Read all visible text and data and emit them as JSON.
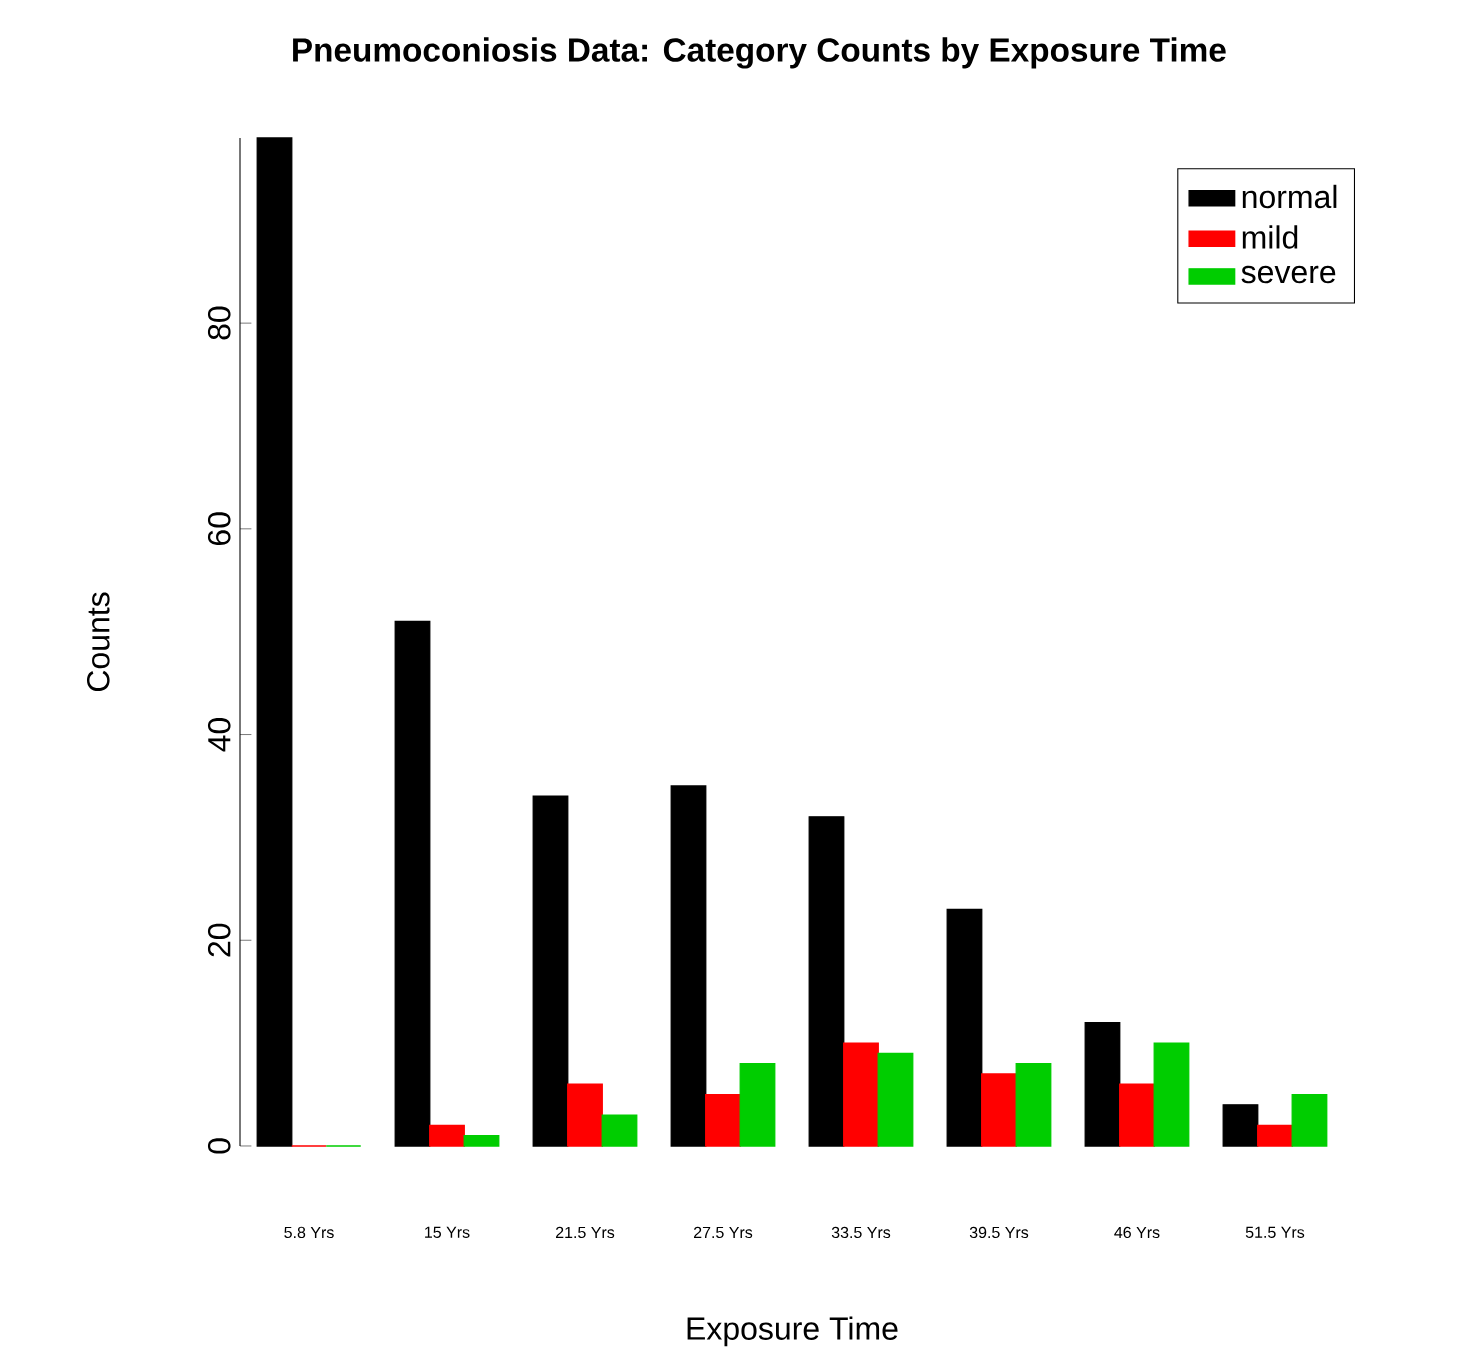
{
  "chart_data": {
    "type": "bar",
    "title": "Pneumoconiosis Data: Category Counts by Exposure Time",
    "xlabel": "Exposure Time",
    "ylabel": "Counts",
    "categories": [
      "5.8 Yrs",
      "15 Yrs",
      "21.5 Yrs",
      "27.5 Yrs",
      "33.5 Yrs",
      "39.5 Yrs",
      "46 Yrs",
      "51.5 Yrs"
    ],
    "series": [
      {
        "name": "normal",
        "color": "#000000",
        "values": [
          98,
          51,
          34,
          35,
          32,
          23,
          12,
          4
        ]
      },
      {
        "name": "mild",
        "color": "#ff0000",
        "values": [
          0,
          2,
          6,
          5,
          10,
          7,
          6,
          2
        ]
      },
      {
        "name": "severe",
        "color": "#00cd00",
        "values": [
          0,
          1,
          3,
          8,
          9,
          8,
          10,
          5
        ]
      }
    ],
    "ylim": [
      0,
      98
    ],
    "yticks": [
      0,
      20,
      40,
      60,
      80
    ],
    "legend": "top right"
  }
}
